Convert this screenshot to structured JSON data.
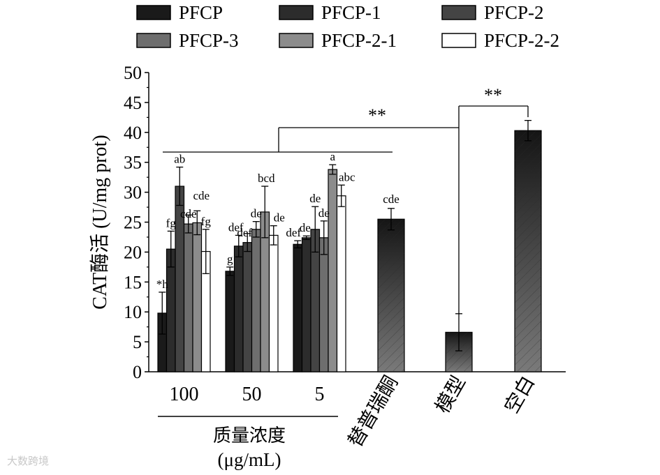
{
  "chart_data": {
    "type": "bar",
    "ylabel": "CAT酶活 (U/mg prot)",
    "ylim": [
      0,
      50
    ],
    "yticks": [
      0,
      5,
      10,
      15,
      20,
      25,
      30,
      35,
      40,
      45,
      50
    ],
    "legend": [
      "PFCP",
      "PFCP-1",
      "PFCP-2",
      "PFCP-3",
      "PFCP-2-1",
      "PFCP-2-2"
    ],
    "legend_position": "top",
    "series_colors": [
      "#1a1a1a",
      "#2c2c2c",
      "#444444",
      "#6e6e6e",
      "#8c8c8c",
      "#ffffff"
    ],
    "groups": [
      {
        "label": "100",
        "values": [
          9.8,
          20.5,
          31.0,
          24.7,
          24.9,
          20.1
        ],
        "errors": [
          3.5,
          3.0,
          3.2,
          1.5,
          2.0,
          3.7
        ],
        "letters": [
          "*h",
          "fg",
          "ab",
          "cde",
          "cde",
          "fg"
        ]
      },
      {
        "label": "50",
        "values": [
          16.8,
          21.0,
          21.6,
          23.8,
          26.7,
          22.8
        ],
        "errors": [
          0.7,
          1.8,
          1.5,
          1.3,
          4.3,
          1.6
        ],
        "letters": [
          "g",
          "def",
          "def",
          "de",
          "bcd",
          "de"
        ]
      },
      {
        "label": "5",
        "values": [
          21.3,
          22.4,
          23.8,
          22.4,
          33.8,
          29.4
        ],
        "errors": [
          0.6,
          0.3,
          3.8,
          2.8,
          0.8,
          1.8
        ],
        "letters": [
          "def",
          "de",
          "de",
          "de",
          "a",
          "abc"
        ]
      }
    ],
    "xgroup_label_line1": "质量浓度",
    "xgroup_label_line2": "(μg/mL)",
    "controls": [
      {
        "label": "替普瑞酮",
        "value": 25.5,
        "error": 1.8,
        "letter": "cde"
      },
      {
        "label": "模型",
        "value": 6.6,
        "error": 3.1,
        "letter": ""
      },
      {
        "label": "空白",
        "value": 40.3,
        "error": 1.7,
        "letter": ""
      }
    ],
    "significance": [
      "**",
      "**"
    ]
  },
  "watermark": "大数跨境"
}
